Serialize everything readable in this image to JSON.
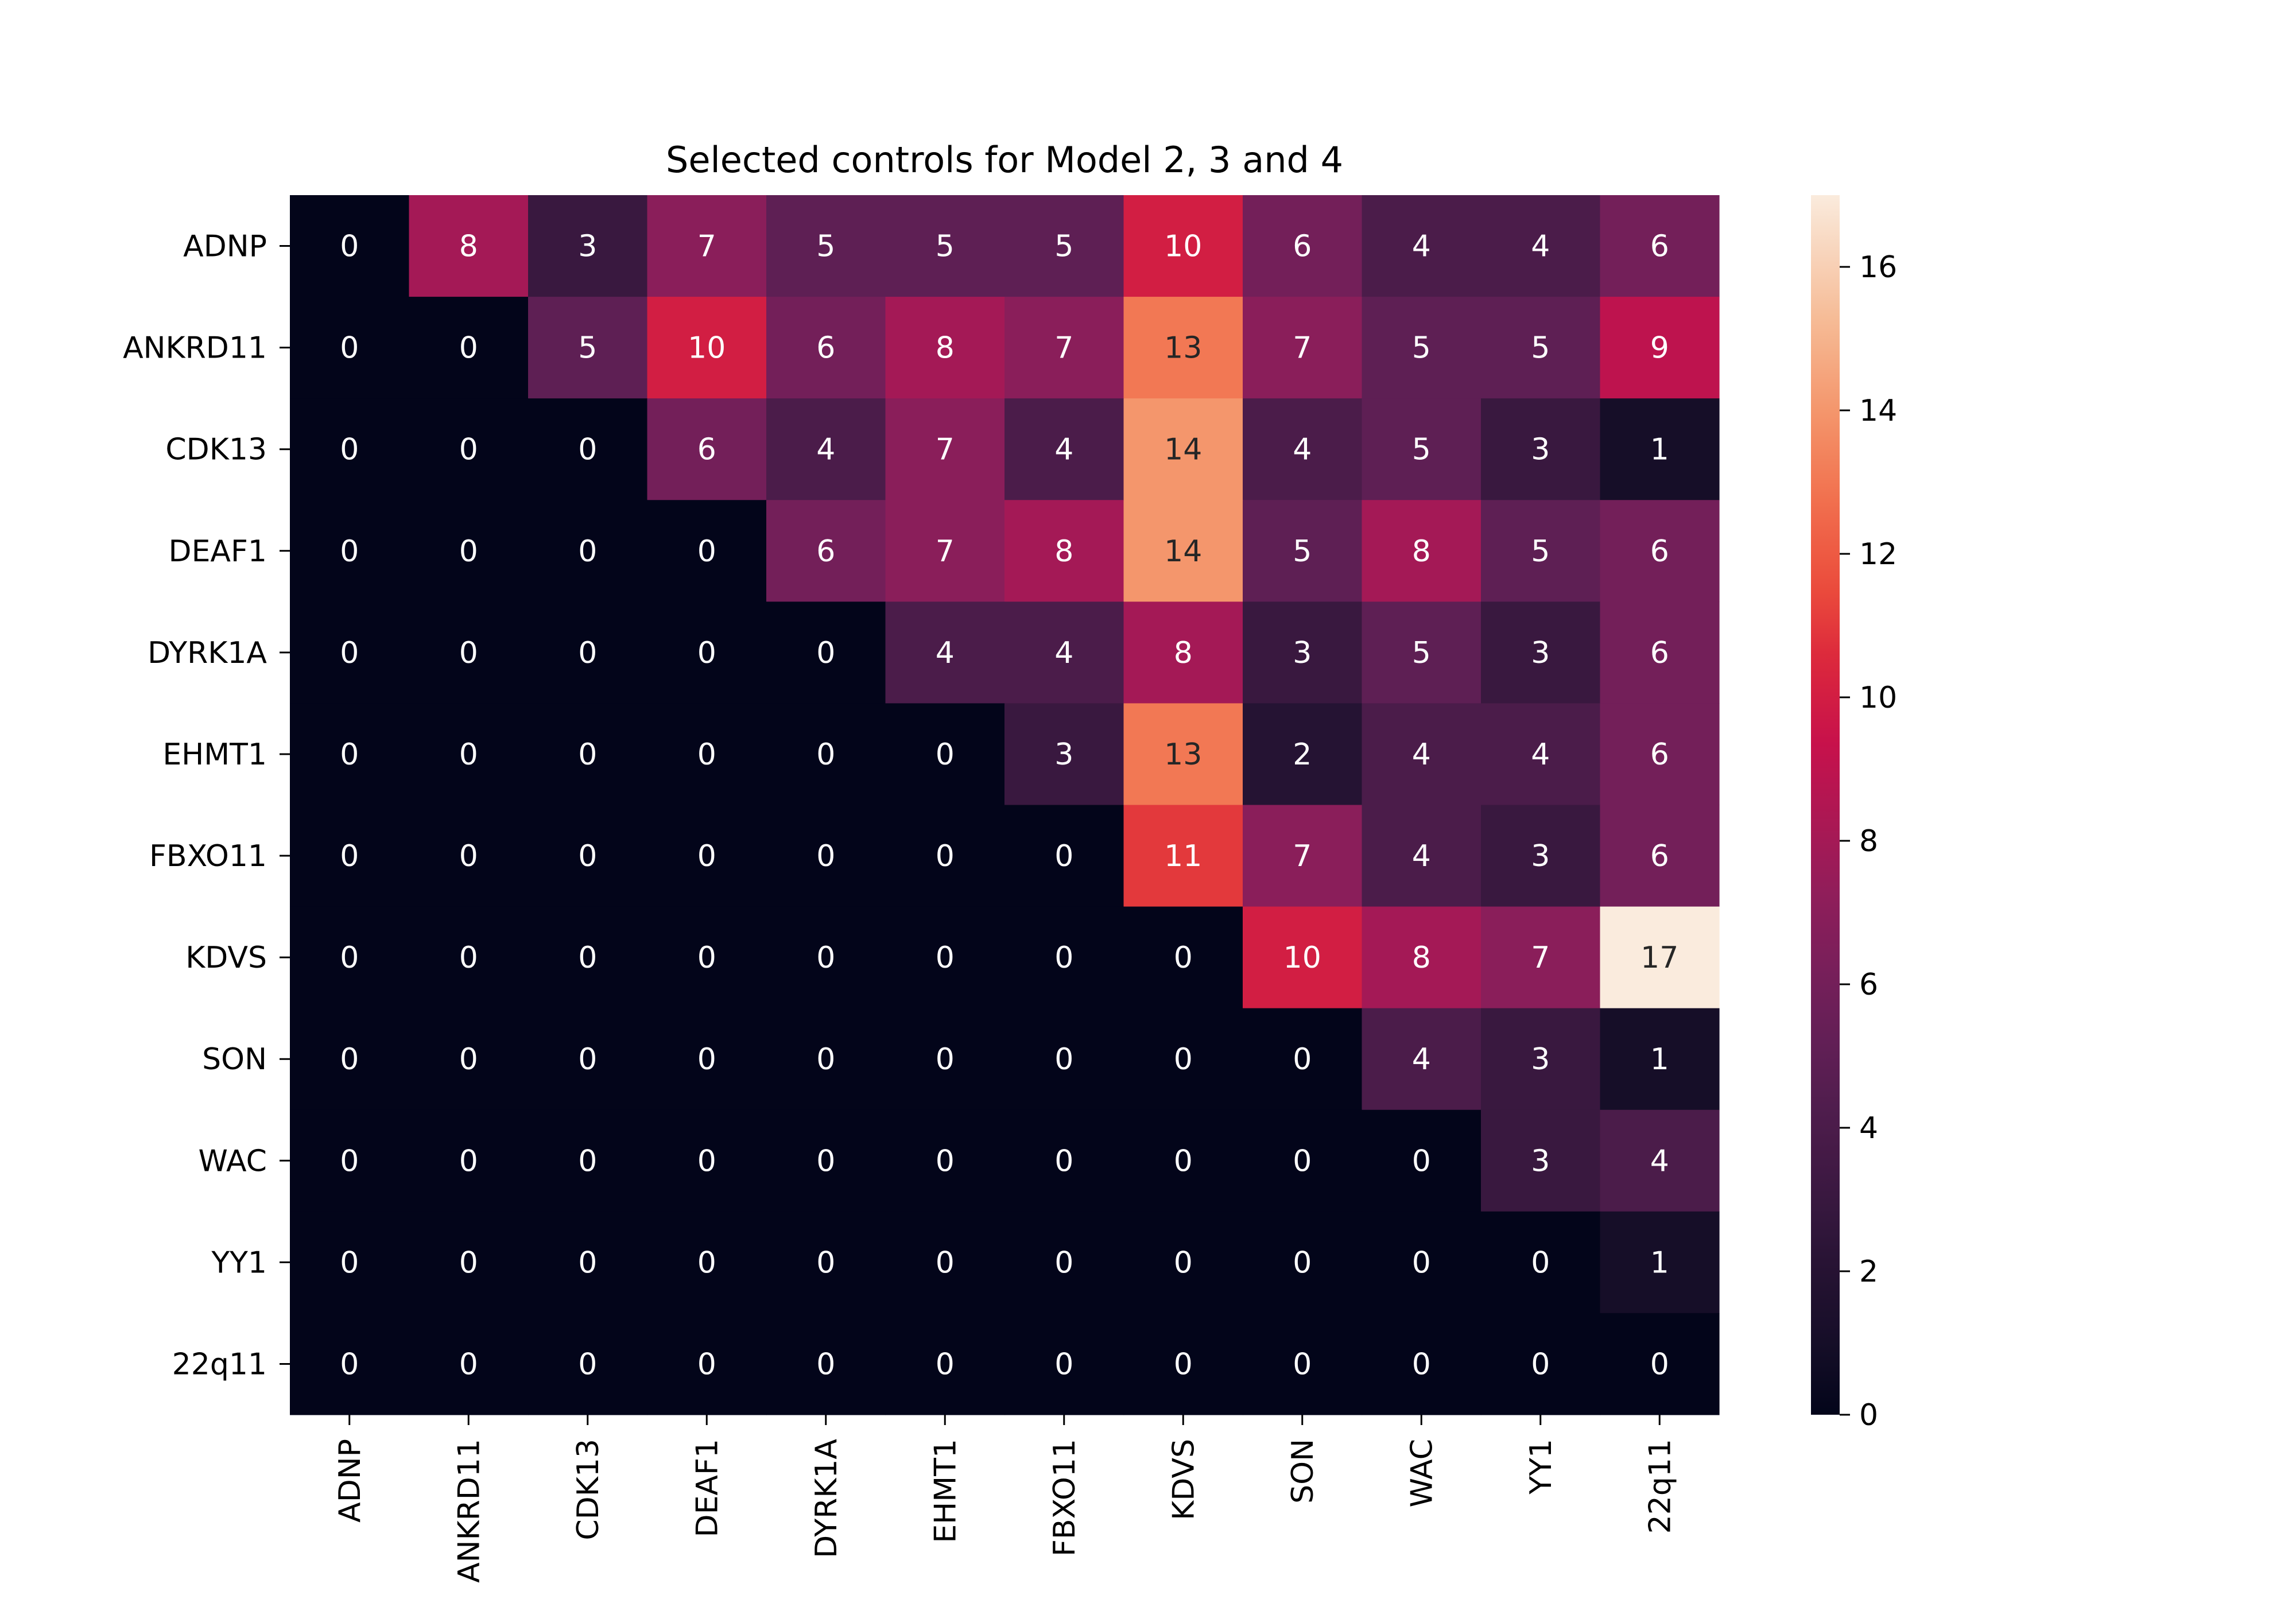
{
  "chart_data": {
    "type": "heatmap",
    "title": "Selected controls for Model 2, 3 and 4",
    "xlabel": "",
    "ylabel": "",
    "x_categories": [
      "ADNP",
      "ANKRD11",
      "CDK13",
      "DEAF1",
      "DYRK1A",
      "EHMT1",
      "FBXO11",
      "KDVS",
      "SON",
      "WAC",
      "YY1",
      "22q11"
    ],
    "y_categories": [
      "ADNP",
      "ANKRD11",
      "CDK13",
      "DEAF1",
      "DYRK1A",
      "EHMT1",
      "FBXO11",
      "KDVS",
      "SON",
      "WAC",
      "YY1",
      "22q11"
    ],
    "values": [
      [
        0,
        8,
        3,
        7,
        5,
        5,
        5,
        10,
        6,
        4,
        4,
        6
      ],
      [
        0,
        0,
        5,
        10,
        6,
        8,
        7,
        13,
        7,
        5,
        5,
        9
      ],
      [
        0,
        0,
        0,
        6,
        4,
        7,
        4,
        14,
        4,
        5,
        3,
        1
      ],
      [
        0,
        0,
        0,
        0,
        6,
        7,
        8,
        14,
        5,
        8,
        5,
        6
      ],
      [
        0,
        0,
        0,
        0,
        0,
        4,
        4,
        8,
        3,
        5,
        3,
        6
      ],
      [
        0,
        0,
        0,
        0,
        0,
        0,
        3,
        13,
        2,
        4,
        4,
        6
      ],
      [
        0,
        0,
        0,
        0,
        0,
        0,
        0,
        11,
        7,
        4,
        3,
        6
      ],
      [
        0,
        0,
        0,
        0,
        0,
        0,
        0,
        0,
        10,
        8,
        7,
        17
      ],
      [
        0,
        0,
        0,
        0,
        0,
        0,
        0,
        0,
        0,
        4,
        3,
        1
      ],
      [
        0,
        0,
        0,
        0,
        0,
        0,
        0,
        0,
        0,
        0,
        3,
        4
      ],
      [
        0,
        0,
        0,
        0,
        0,
        0,
        0,
        0,
        0,
        0,
        0,
        1
      ],
      [
        0,
        0,
        0,
        0,
        0,
        0,
        0,
        0,
        0,
        0,
        0,
        0
      ]
    ],
    "colorbar": {
      "range": [
        0,
        17
      ],
      "ticks": [
        0,
        2,
        4,
        6,
        8,
        10,
        12,
        14,
        16
      ]
    },
    "colormap": "rocket",
    "annotations": true,
    "grid": false
  }
}
